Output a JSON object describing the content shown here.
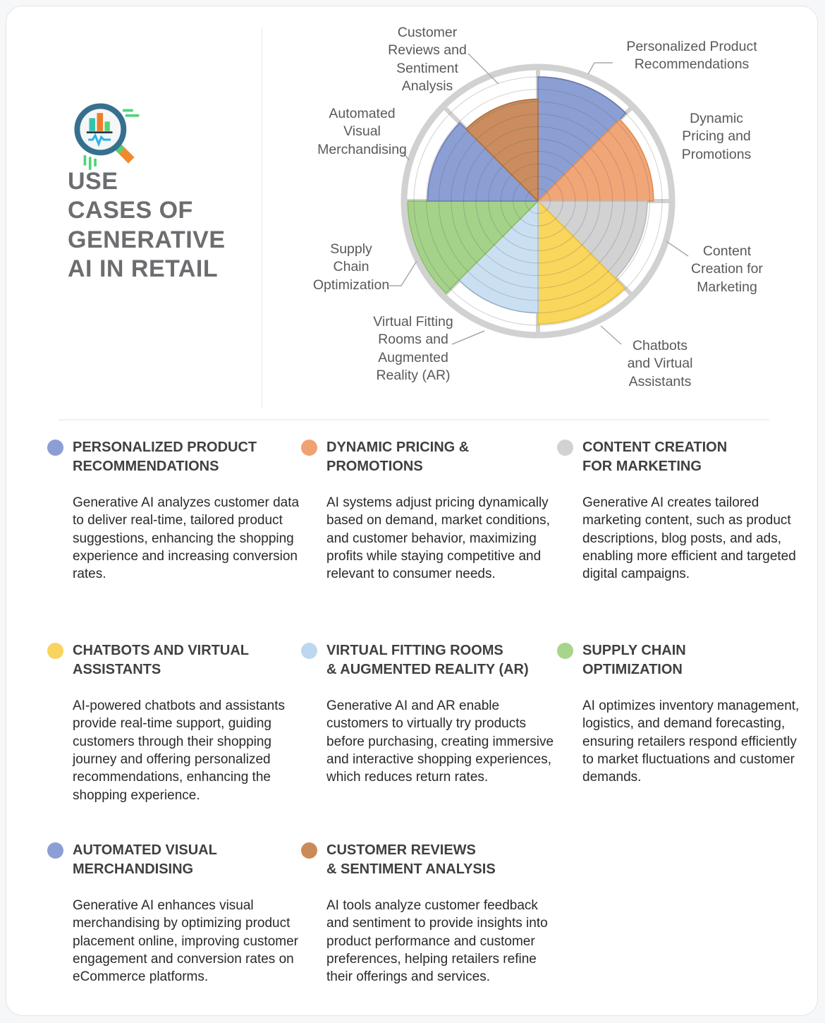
{
  "page": {
    "background": "#ffffff",
    "outer_background": "#f6f7f8"
  },
  "header": {
    "title": "USE\nCASES OF\nGENERATIVE\nAI IN RETAIL",
    "icon": "magnifier-bar-chart-icon",
    "icon_colors": {
      "ring": "#37708e",
      "lens": "#f4f6f7",
      "bar_teal": "#33c3ad",
      "bar_orange": "#f07c2b",
      "bar_green": "#57d077",
      "pulse": "#2bb3e8",
      "handle": "#f18a2e",
      "accent_lines": "#4ed47c"
    }
  },
  "chart_data": {
    "type": "polar_sector",
    "title": "",
    "categories": [
      "Personalized Product Recommendations",
      "Dynamic Pricing and Promotions",
      "Content Creation for Marketing",
      "Chatbots and Virtual Assistants",
      "Virtual Fitting Rooms and Augmented Reality (AR)",
      "Supply Chain Optimization",
      "Automated Visual Merchandising",
      "Customer Reviews and Sentiment Analysis"
    ],
    "values": [
      10,
      9.3,
      8.8,
      9.9,
      9.0,
      10.5,
      8.9,
      8.2
    ],
    "scale_max": 10,
    "start_angle_deg": 0,
    "sector_span_deg": 45,
    "direction": "clockwise",
    "grid": true,
    "grid_rings": 10,
    "ring_color": "#d1d1d1",
    "colors": [
      "#8c9fd4",
      "#f1a678",
      "#d2d2d2",
      "#f9d65c",
      "#cbdff2",
      "#a5d289",
      "#8c9fd4",
      "#cb8d5f"
    ],
    "border_colors": [
      "#7082b8",
      "#e09055",
      "#bdbdbd",
      "#e8c23c",
      "#aac6e4",
      "#8cbf6c",
      "#7082b8",
      "#b3703d"
    ],
    "labels": [
      "Personalized Product\nRecommendations",
      "Dynamic\nPricing and\nPromotions",
      "Content\nCreation for\nMarketing",
      "Chatbots\nand Virtual\nAssistants",
      "Virtual Fitting\nRooms and\nAugmented\nReality (AR)",
      "Supply\nChain\nOptimization",
      "Automated\nVisual\nMerchandising",
      "Customer\nReviews and\nSentiment\nAnalysis"
    ]
  },
  "cards": [
    {
      "dot_color": "#8c9fd4",
      "title": "PERSONALIZED PRODUCT\nRECOMMENDATIONS",
      "body": "Generative AI analyzes customer data to deliver real-time, tailored product suggestions, enhancing the shopping experience and increasing conversion rates."
    },
    {
      "dot_color": "#f0a273",
      "title": "DYNAMIC PRICING &\nPROMOTIONS",
      "body": "AI systems adjust pricing dynamically based on demand, market conditions, and customer behavior, maximizing profits while staying competitive and relevant to consumer needs."
    },
    {
      "dot_color": "#d2d2d2",
      "title": "CONTENT CREATION\nFOR MARKETING",
      "body": "Generative AI creates tailored marketing content, such as product descriptions, blog posts, and ads, enabling more efficient and targeted digital campaigns."
    },
    {
      "dot_color": "#f8d35e",
      "title": "CHATBOTS AND VIRTUAL\nASSISTANTS",
      "body": "AI-powered chatbots and assistants provide real-time support, guiding customers through their shopping journey and offering personalized recommendations, enhancing the shopping experience."
    },
    {
      "dot_color": "#bcd7ee",
      "title": "VIRTUAL FITTING ROOMS\n& AUGMENTED REALITY (AR)",
      "body": "Generative AI and AR enable customers to virtually try products before purchasing, creating immersive and interactive shopping experiences, which reduces return rates."
    },
    {
      "dot_color": "#a8d48b",
      "title": "SUPPLY CHAIN\nOPTIMIZATION",
      "body": "AI optimizes inventory management, logistics, and demand forecasting, ensuring retailers respond efficiently to market fluctuations and customer demands."
    },
    {
      "dot_color": "#8c9fd4",
      "title": "AUTOMATED VISUAL\nMERCHANDISING",
      "body": "Generative AI enhances visual merchandising by optimizing product placement online, improving customer engagement and conversion rates on eCommerce platforms."
    },
    {
      "dot_color": "#cb8a59",
      "title": "CUSTOMER REVIEWS\n& SENTIMENT ANALYSIS",
      "body": "AI tools analyze customer feedback and sentiment to provide insights into product performance and customer preferences, helping retailers refine their offerings and services."
    }
  ]
}
